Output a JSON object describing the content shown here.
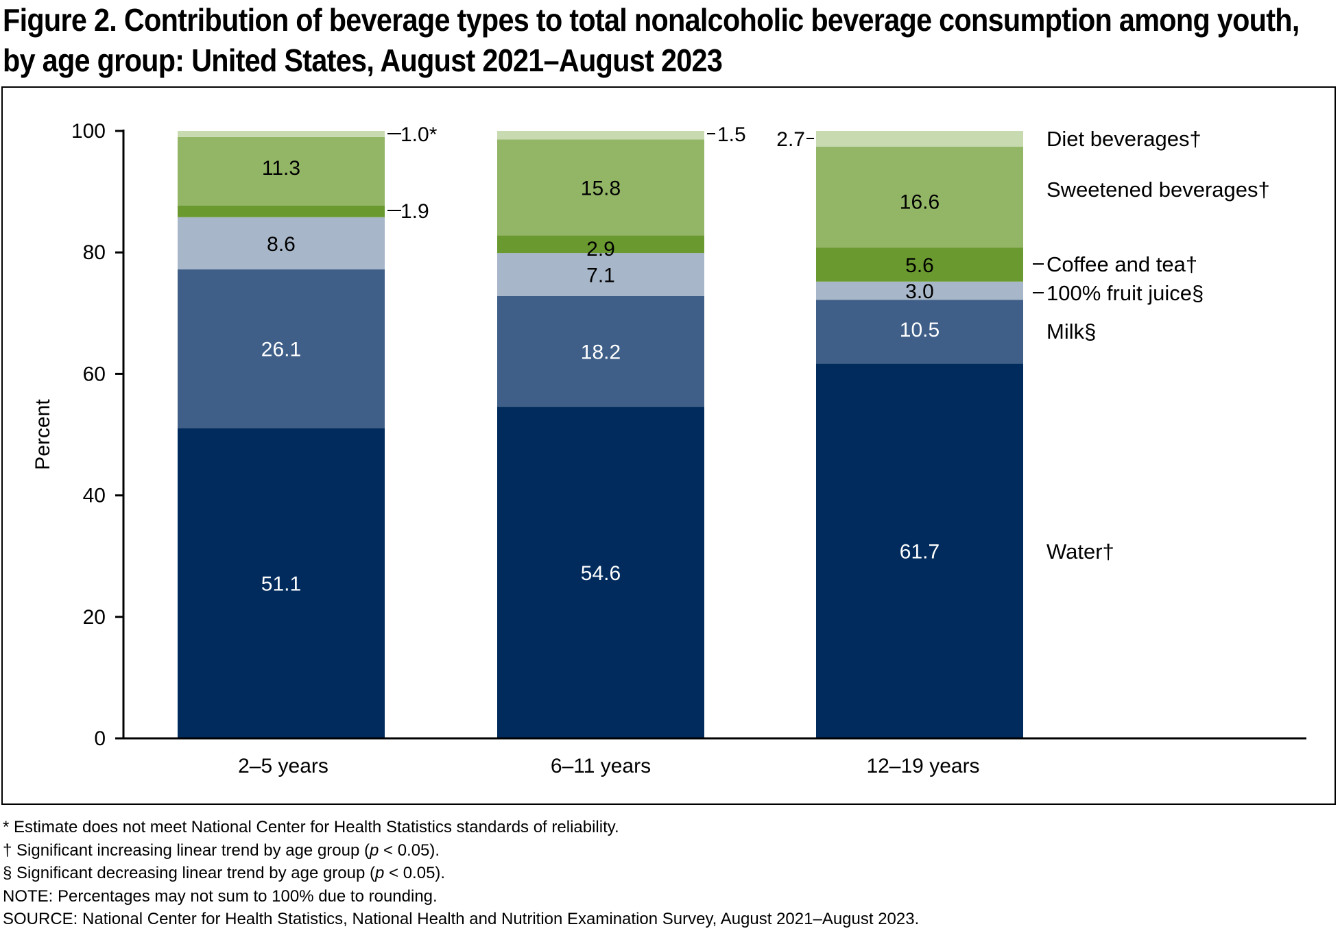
{
  "figure": {
    "title_line1": "Figure 2. Contribution of beverage types to total nonalcoholic beverage consumption among youth,",
    "title_line2": "by age group: United States, August 2021–August 2023"
  },
  "chart_data": {
    "type": "bar",
    "stacked": true,
    "categories": [
      "2–5 years",
      "6–11 years",
      "12–19 years"
    ],
    "ylabel": "Percent",
    "xlabel": "",
    "ylim": [
      0,
      100
    ],
    "yticks": [
      0,
      20,
      40,
      60,
      80,
      100
    ],
    "grid": false,
    "legend": "right",
    "series": [
      {
        "name": "Water†",
        "color": "#002b5c",
        "label_color": "#ffffff",
        "values": [
          51.1,
          54.6,
          61.7
        ],
        "labels": [
          "51.1",
          "54.6",
          "61.7"
        ]
      },
      {
        "name": "Milk§",
        "color": "#3f5f88",
        "label_color": "#ffffff",
        "values": [
          26.1,
          18.2,
          10.5
        ],
        "labels": [
          "26.1",
          "18.2",
          "10.5"
        ]
      },
      {
        "name": "100% fruit juice§",
        "color": "#a7b6c8",
        "label_color": "#000000",
        "values": [
          8.6,
          7.1,
          3.0
        ],
        "labels": [
          "8.6",
          "7.1",
          "3.0"
        ]
      },
      {
        "name": "Coffee and tea†",
        "color": "#6a9a2f",
        "label_color": "#000000",
        "values": [
          1.9,
          2.9,
          5.6
        ],
        "labels": [
          "1.9",
          "2.9",
          "5.6"
        ]
      },
      {
        "name": "Sweetened beverages†",
        "color": "#92b566",
        "label_color": "#000000",
        "values": [
          11.3,
          15.8,
          16.6
        ],
        "labels": [
          "11.3",
          "15.8",
          "16.6"
        ]
      },
      {
        "name": "Diet beverages†",
        "color": "#c8dbb0",
        "label_color": "#000000",
        "values": [
          1.0,
          1.5,
          2.7
        ],
        "labels": [
          "1.0*",
          "1.5",
          "2.7"
        ]
      }
    ]
  },
  "notes": [
    "* Estimate does not meet National Center for Health Statistics standards of reliability.",
    "† Significant increasing linear trend by age group (",
    "§ Significant decreasing linear trend by age group (",
    "NOTE: Percentages may not sum to 100% due to rounding.",
    "SOURCE: National Center for Health Statistics, National Health and Nutrition Examination Survey, August 2021–August 2023."
  ],
  "pvalue": {
    "symbol": "p",
    "text": " < 0.05)."
  }
}
